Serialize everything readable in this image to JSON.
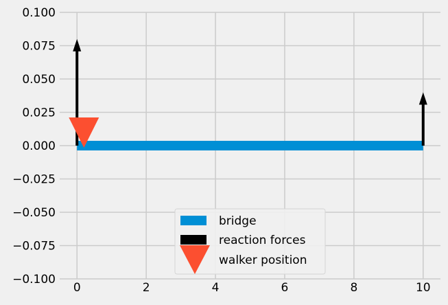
{
  "chart_data": {
    "type": "line",
    "title": "",
    "xlabel": "",
    "ylabel": "",
    "xlim": [
      -0.5,
      10.5
    ],
    "ylim": [
      -0.1,
      0.1
    ],
    "x_ticks": [
      0,
      2,
      4,
      6,
      8,
      10
    ],
    "x_tick_labels": [
      "0",
      "2",
      "4",
      "6",
      "8",
      "10"
    ],
    "y_ticks": [
      0.1,
      0.075,
      0.05,
      0.025,
      0.0,
      -0.025,
      -0.05,
      -0.075,
      -0.1
    ],
    "y_tick_labels": [
      "0.100",
      "0.075",
      "0.050",
      "0.025",
      "0.000",
      "−0.025",
      "−0.050",
      "−0.075",
      "−0.100"
    ],
    "grid": true,
    "legend_position": "lower-center",
    "series": [
      {
        "name": "bridge",
        "kind": "bar",
        "x": [
          0,
          10
        ],
        "y": [
          0,
          0
        ],
        "color": "#008fd5"
      },
      {
        "name": "reaction forces",
        "kind": "arrows",
        "color": "#000000",
        "arrows": [
          {
            "x": 0,
            "y0": 0,
            "y1": 0.08
          },
          {
            "x": 10,
            "y0": 0,
            "y1": 0.04
          }
        ]
      },
      {
        "name": "walker position",
        "kind": "marker",
        "marker": "triangle-down",
        "x": [
          0.2
        ],
        "y": [
          0.0
        ],
        "color": "#fc4f30"
      }
    ]
  }
}
